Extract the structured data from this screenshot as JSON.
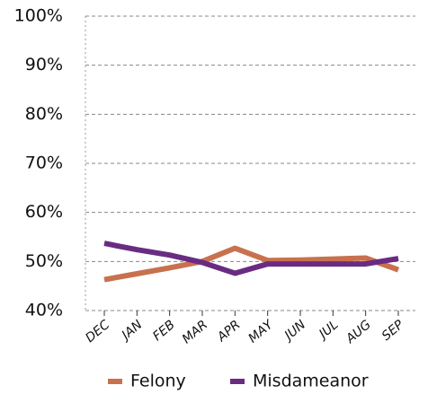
{
  "chart_data": {
    "type": "line",
    "categories": [
      "DEC",
      "JAN",
      "FEB",
      "MAR",
      "APR",
      "MAY",
      "JUN",
      "JUL",
      "AUG",
      "SEP"
    ],
    "series": [
      {
        "name": "Felony",
        "color": "#c8714e",
        "values": [
          46.3,
          47.5,
          48.7,
          50.0,
          52.7,
          50.2,
          50.3,
          50.5,
          50.7,
          48.3
        ]
      },
      {
        "name": "Misdameanor",
        "color": "#6a2c82",
        "values": [
          53.7,
          52.4,
          51.3,
          49.8,
          47.6,
          49.5,
          49.5,
          49.5,
          49.5,
          50.6
        ]
      }
    ],
    "ylim": [
      40,
      100
    ],
    "yticks": [
      {
        "value": 40,
        "label": "40%"
      },
      {
        "value": 50,
        "label": "50%"
      },
      {
        "value": 60,
        "label": "60%"
      },
      {
        "value": 70,
        "label": "70%"
      },
      {
        "value": 80,
        "label": "80%"
      },
      {
        "value": 90,
        "label": "90%"
      },
      {
        "value": 100,
        "label": "100%"
      }
    ],
    "grid": true,
    "legend": "bottom"
  }
}
